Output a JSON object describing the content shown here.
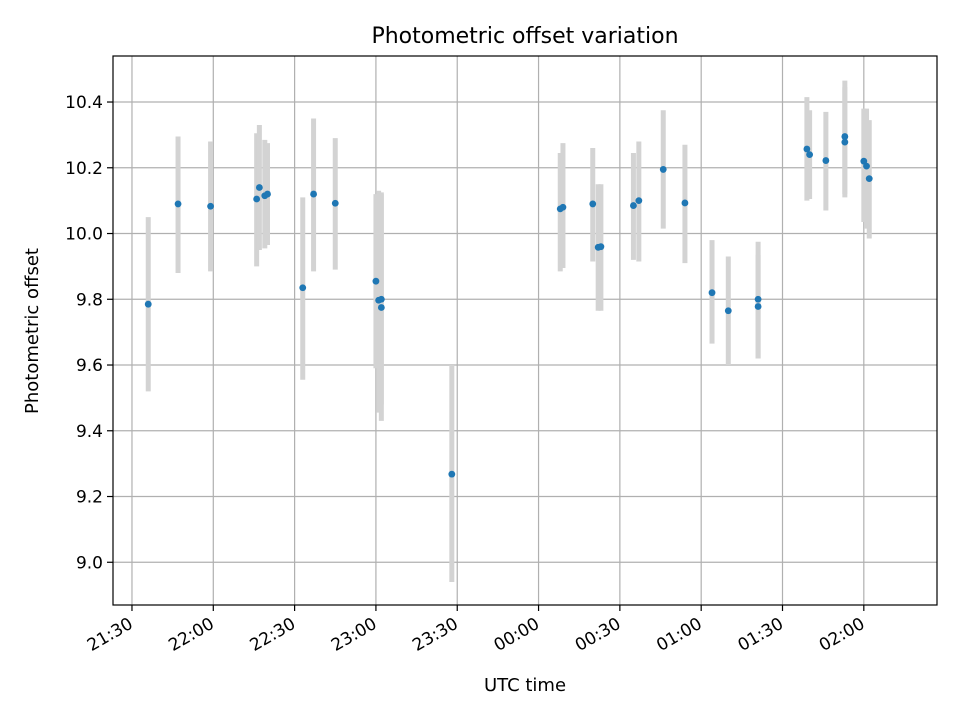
{
  "chart_data": {
    "type": "scatter",
    "title": "Photometric offset variation",
    "xlabel": "UTC time",
    "ylabel": "Photometric offset",
    "xlim": [
      "21:23",
      "02:27"
    ],
    "ylim": [
      8.87,
      10.54
    ],
    "x_ticks": [
      "21:30",
      "22:00",
      "22:30",
      "23:00",
      "23:30",
      "00:00",
      "00:30",
      "01:00",
      "01:30",
      "02:00"
    ],
    "y_ticks": [
      "9.0",
      "9.2",
      "9.4",
      "9.6",
      "9.8",
      "10.0",
      "10.2",
      "10.4"
    ],
    "grid": true,
    "point_color": "#1f77b4",
    "errorbar_color": "#d3d3d3",
    "points": [
      {
        "t": "21:36",
        "y": 9.785,
        "lo": 9.52,
        "hi": 10.05
      },
      {
        "t": "21:47",
        "y": 10.09,
        "lo": 9.88,
        "hi": 10.295
      },
      {
        "t": "21:59",
        "y": 10.083,
        "lo": 9.885,
        "hi": 10.28
      },
      {
        "t": "22:16",
        "y": 10.105,
        "lo": 9.9,
        "hi": 10.305
      },
      {
        "t": "22:17",
        "y": 10.14,
        "lo": 9.95,
        "hi": 10.33
      },
      {
        "t": "22:19",
        "y": 10.115,
        "lo": 9.955,
        "hi": 10.285
      },
      {
        "t": "22:20",
        "y": 10.12,
        "lo": 9.965,
        "hi": 10.275
      },
      {
        "t": "22:33",
        "y": 9.835,
        "lo": 9.555,
        "hi": 10.11
      },
      {
        "t": "22:37",
        "y": 10.12,
        "lo": 9.885,
        "hi": 10.35
      },
      {
        "t": "22:45",
        "y": 10.092,
        "lo": 9.89,
        "hi": 10.29
      },
      {
        "t": "23:00",
        "y": 9.855,
        "lo": 9.59,
        "hi": 10.12
      },
      {
        "t": "23:01",
        "y": 9.797,
        "lo": 9.455,
        "hi": 10.13
      },
      {
        "t": "23:02",
        "y": 9.8,
        "lo": 9.48,
        "hi": 10.125
      },
      {
        "t": "23:02",
        "y": 9.775,
        "lo": 9.43,
        "hi": 10.12
      },
      {
        "t": "23:28",
        "y": 9.268,
        "lo": 8.94,
        "hi": 9.6
      },
      {
        "t": "00:08",
        "y": 10.075,
        "lo": 9.885,
        "hi": 10.245
      },
      {
        "t": "00:09",
        "y": 10.08,
        "lo": 9.895,
        "hi": 10.275
      },
      {
        "t": "00:20",
        "y": 10.09,
        "lo": 9.915,
        "hi": 10.26
      },
      {
        "t": "00:22",
        "y": 9.958,
        "lo": 9.765,
        "hi": 10.15
      },
      {
        "t": "00:23",
        "y": 9.96,
        "lo": 9.765,
        "hi": 10.15
      },
      {
        "t": "00:35",
        "y": 10.085,
        "lo": 9.92,
        "hi": 10.245
      },
      {
        "t": "00:37",
        "y": 10.1,
        "lo": 9.915,
        "hi": 10.28
      },
      {
        "t": "00:46",
        "y": 10.195,
        "lo": 10.015,
        "hi": 10.375
      },
      {
        "t": "00:54",
        "y": 10.093,
        "lo": 9.91,
        "hi": 10.27
      },
      {
        "t": "01:04",
        "y": 9.82,
        "lo": 9.665,
        "hi": 9.98
      },
      {
        "t": "01:10",
        "y": 9.765,
        "lo": 9.6,
        "hi": 9.93
      },
      {
        "t": "01:21",
        "y": 9.8,
        "lo": 9.62,
        "hi": 9.975
      },
      {
        "t": "01:21",
        "y": 9.778,
        "lo": 9.62,
        "hi": 9.935
      },
      {
        "t": "01:39",
        "y": 10.257,
        "lo": 10.1,
        "hi": 10.415
      },
      {
        "t": "01:40",
        "y": 10.24,
        "lo": 10.105,
        "hi": 10.375
      },
      {
        "t": "01:46",
        "y": 10.222,
        "lo": 10.07,
        "hi": 10.37
      },
      {
        "t": "01:53",
        "y": 10.278,
        "lo": 10.11,
        "hi": 10.445
      },
      {
        "t": "01:53",
        "y": 10.295,
        "lo": 10.12,
        "hi": 10.465
      },
      {
        "t": "02:00",
        "y": 10.22,
        "lo": 10.035,
        "hi": 10.38
      },
      {
        "t": "02:01",
        "y": 10.205,
        "lo": 10.015,
        "hi": 10.38
      },
      {
        "t": "02:02",
        "y": 10.167,
        "lo": 9.985,
        "hi": 10.345
      }
    ]
  }
}
